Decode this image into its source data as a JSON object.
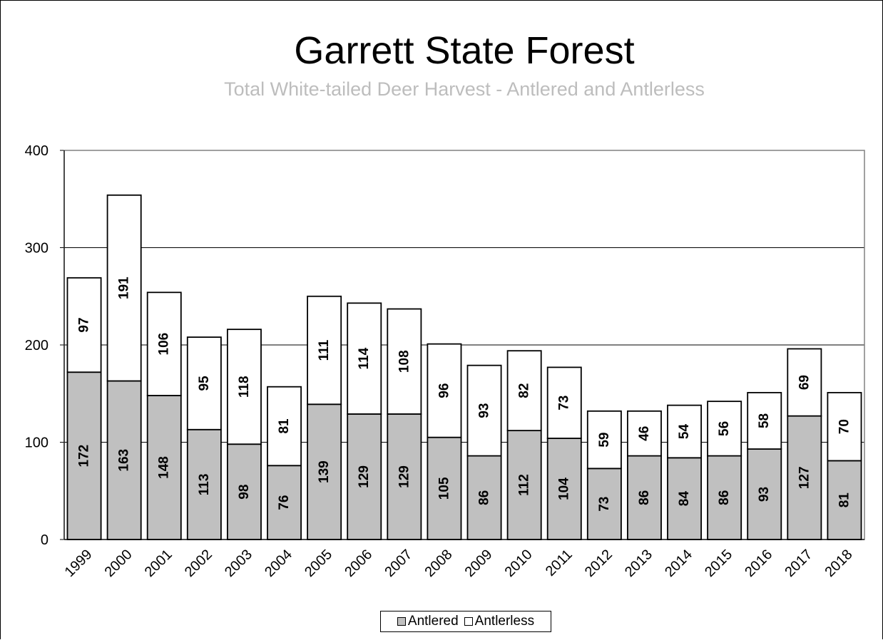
{
  "chart_data": {
    "type": "bar",
    "stacked": true,
    "title": "Garrett State Forest",
    "subtitle": "Total White-tailed Deer Harvest - Antlered and Antlerless",
    "xlabel": "",
    "ylabel": "",
    "ylim": [
      0,
      400
    ],
    "yticks": [
      "0",
      "100",
      "200",
      "300",
      "400"
    ],
    "grid": true,
    "legend_position": "bottom",
    "categories": [
      "1999",
      "2000",
      "2001",
      "2002",
      "2003",
      "2004",
      "2005",
      "2006",
      "2007",
      "2008",
      "2009",
      "2010",
      "2011",
      "2012",
      "2013",
      "2014",
      "2015",
      "2016",
      "2017",
      "2018"
    ],
    "series": [
      {
        "name": "Antlered",
        "color": "#c0c0c0",
        "values": [
          172,
          163,
          148,
          113,
          98,
          76,
          139,
          129,
          129,
          105,
          86,
          112,
          104,
          73,
          86,
          84,
          86,
          93,
          127,
          81
        ]
      },
      {
        "name": "Antlerless",
        "color": "#ffffff",
        "values": [
          97,
          191,
          106,
          95,
          118,
          81,
          111,
          114,
          108,
          96,
          93,
          82,
          73,
          59,
          46,
          54,
          56,
          58,
          69,
          70
        ]
      }
    ]
  }
}
